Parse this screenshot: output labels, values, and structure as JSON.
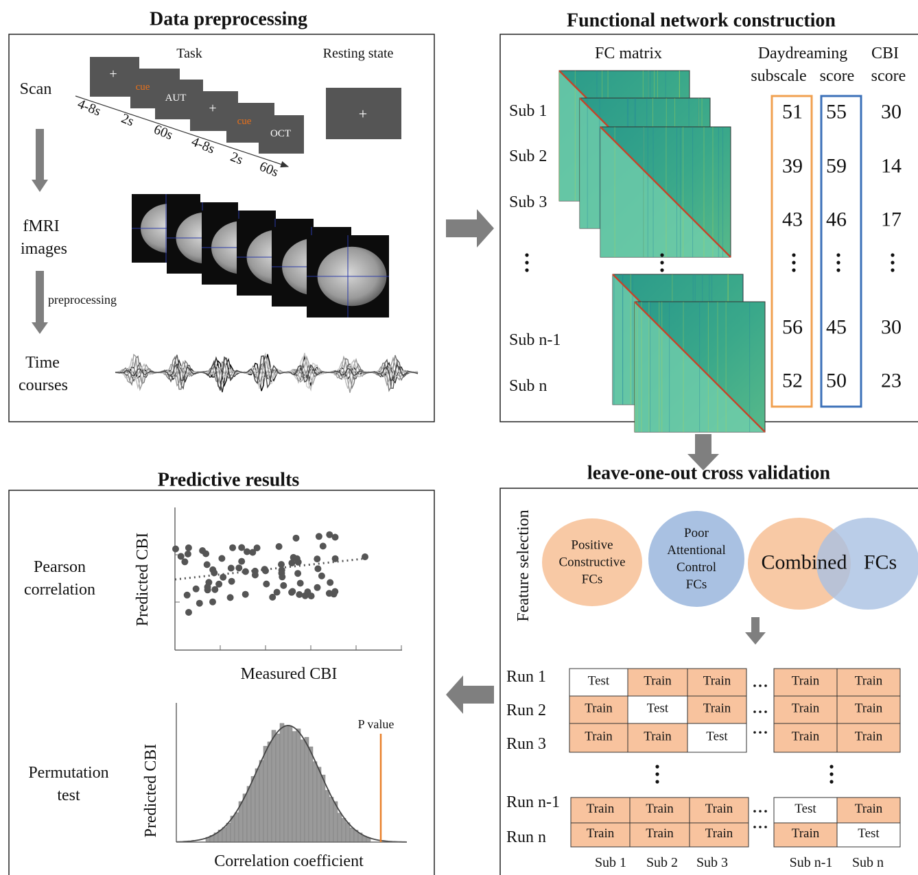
{
  "preprocessing": {
    "title": "Data preprocessing",
    "scan": "Scan",
    "task": "Task",
    "resting_state": "Resting state",
    "slides": [
      {
        "text": "+"
      },
      {
        "text": "cue",
        "color": "#e8701a"
      },
      {
        "text": "AUT"
      },
      {
        "text": "+"
      },
      {
        "text": "cue",
        "color": "#e8701a"
      },
      {
        "text": "OCT"
      }
    ],
    "resting_slide": "+",
    "timings": [
      "4-8s",
      "2s",
      "60s",
      "4-8s",
      "2s",
      "60s"
    ],
    "fmri": [
      "fMRI",
      "images"
    ],
    "preprocessing_step": "preprocessing",
    "time_courses": [
      "Time",
      "courses"
    ]
  },
  "network": {
    "title": "Functional network construction",
    "fc_matrix": "FC matrix",
    "headers": [
      "Daydreaming",
      "subscale",
      "score",
      "CBI",
      "score"
    ],
    "subjects": [
      {
        "label": "Sub 1",
        "scores": [
          51,
          55,
          30
        ]
      },
      {
        "label": "Sub 2",
        "scores": [
          39,
          59,
          14
        ]
      },
      {
        "label": "Sub 3",
        "scores": [
          43,
          46,
          17
        ]
      },
      {
        "label": "Sub n-1",
        "scores": [
          56,
          45,
          30
        ]
      },
      {
        "label": "Sub n",
        "scores": [
          52,
          50,
          23
        ]
      }
    ]
  },
  "loocv": {
    "title": "leave-one-out cross validation",
    "feature_selection": "Feature selection",
    "sets": [
      {
        "lines": [
          "Positive",
          "Constructive",
          "FCs"
        ],
        "color": "#f8c9a5"
      },
      {
        "lines": [
          "Poor",
          "Attentional",
          "Control",
          "FCs"
        ],
        "color": "#a9c1e2"
      }
    ],
    "combined": [
      "Combined",
      "FCs"
    ],
    "cell_colors": {
      "Train": "#f8c39e",
      "Test": "#ffffff"
    },
    "runs": [
      {
        "label": "Run 1",
        "cells": [
          "Test",
          "Train",
          "Train",
          "Train",
          "Train"
        ]
      },
      {
        "label": "Run 2",
        "cells": [
          "Train",
          "Test",
          "Train",
          "Train",
          "Train"
        ]
      },
      {
        "label": "Run 3",
        "cells": [
          "Train",
          "Train",
          "Test",
          "Train",
          "Train"
        ]
      },
      {
        "label": "Run n-1",
        "cells": [
          "Train",
          "Train",
          "Train",
          "Test",
          "Train"
        ]
      },
      {
        "label": "Run n",
        "cells": [
          "Train",
          "Train",
          "Train",
          "Train",
          "Test"
        ]
      }
    ],
    "subjects": [
      "Sub 1",
      "Sub 2",
      "Sub 3",
      "Sub n-1",
      "Sub n"
    ]
  },
  "results": {
    "title": "Predictive results",
    "pearson": [
      "Pearson",
      "correlation"
    ],
    "scatter_y": "Predicted CBI",
    "scatter_x": "Measured CBI",
    "permutation": [
      "Permutation",
      "test"
    ],
    "hist_y": "Predicted CBI",
    "hist_x": "Correlation coefficient",
    "p_value": "P value"
  }
}
